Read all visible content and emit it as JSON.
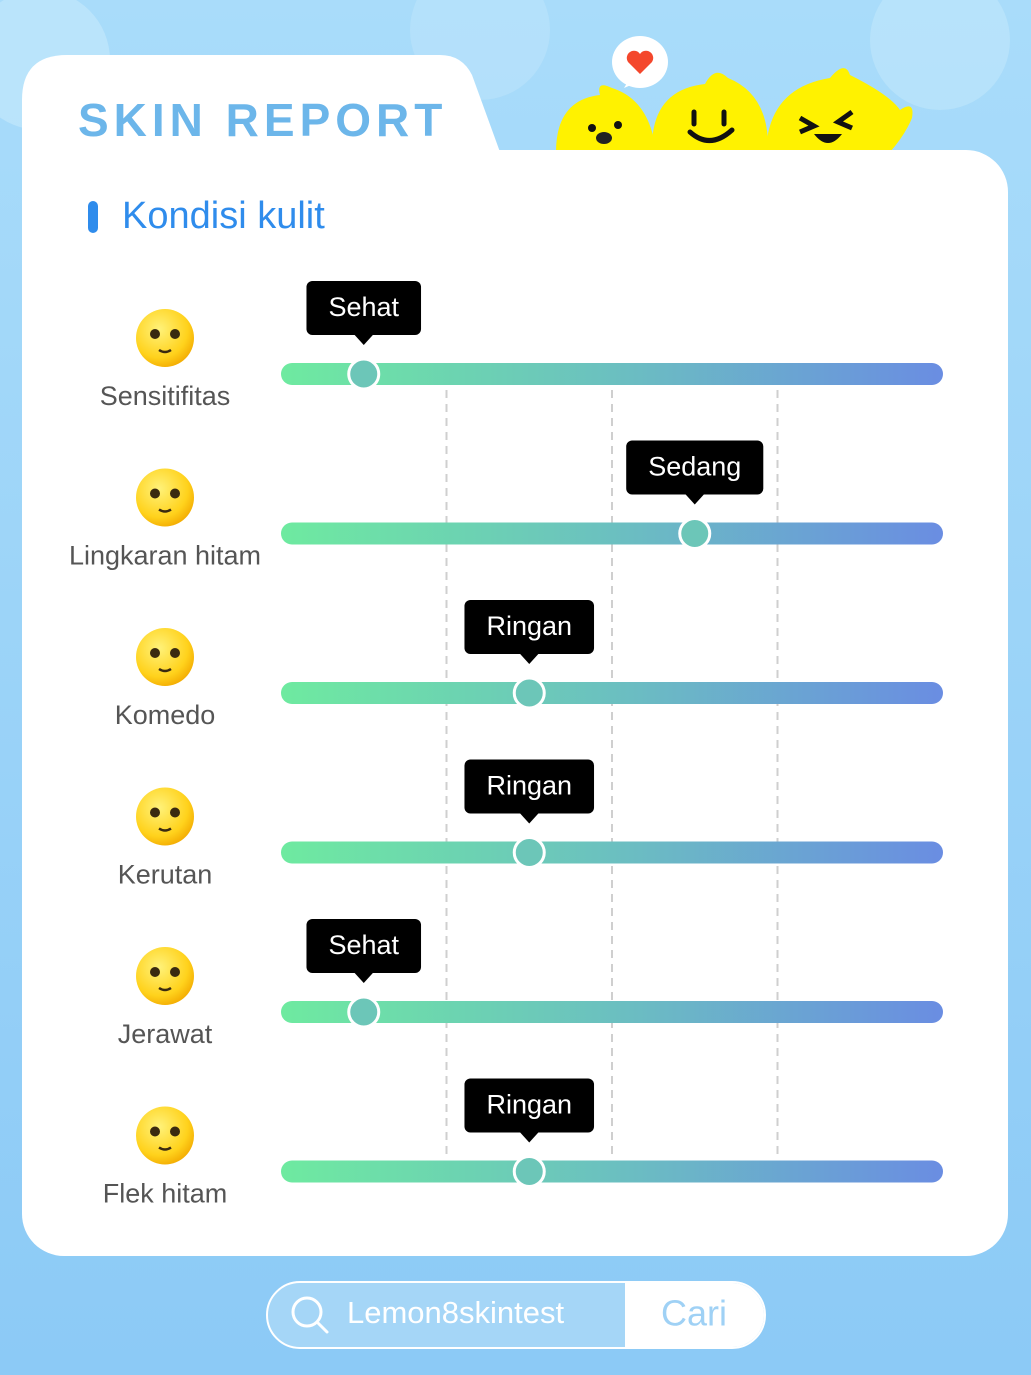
{
  "header": {
    "title": "SKIN REPORT"
  },
  "section": {
    "title": "Kondisi kulit"
  },
  "slider": {
    "xlim": [
      0,
      4
    ],
    "xticks": [
      1,
      2,
      3
    ]
  },
  "rows": [
    {
      "label": "Sensitifitas",
      "level": "Sehat",
      "value": 0.5
    },
    {
      "label": "Lingkaran hitam",
      "level": "Sedang",
      "value": 2.5
    },
    {
      "label": "Komedo",
      "level": "Ringan",
      "value": 1.5
    },
    {
      "label": "Kerutan",
      "level": "Ringan",
      "value": 1.5
    },
    {
      "label": "Jerawat",
      "level": "Sehat",
      "value": 0.5
    },
    {
      "label": "Flek hitam",
      "level": "Ringan",
      "value": 1.5
    }
  ],
  "search": {
    "placeholder": "Lemon8skintest",
    "button": "Cari"
  }
}
